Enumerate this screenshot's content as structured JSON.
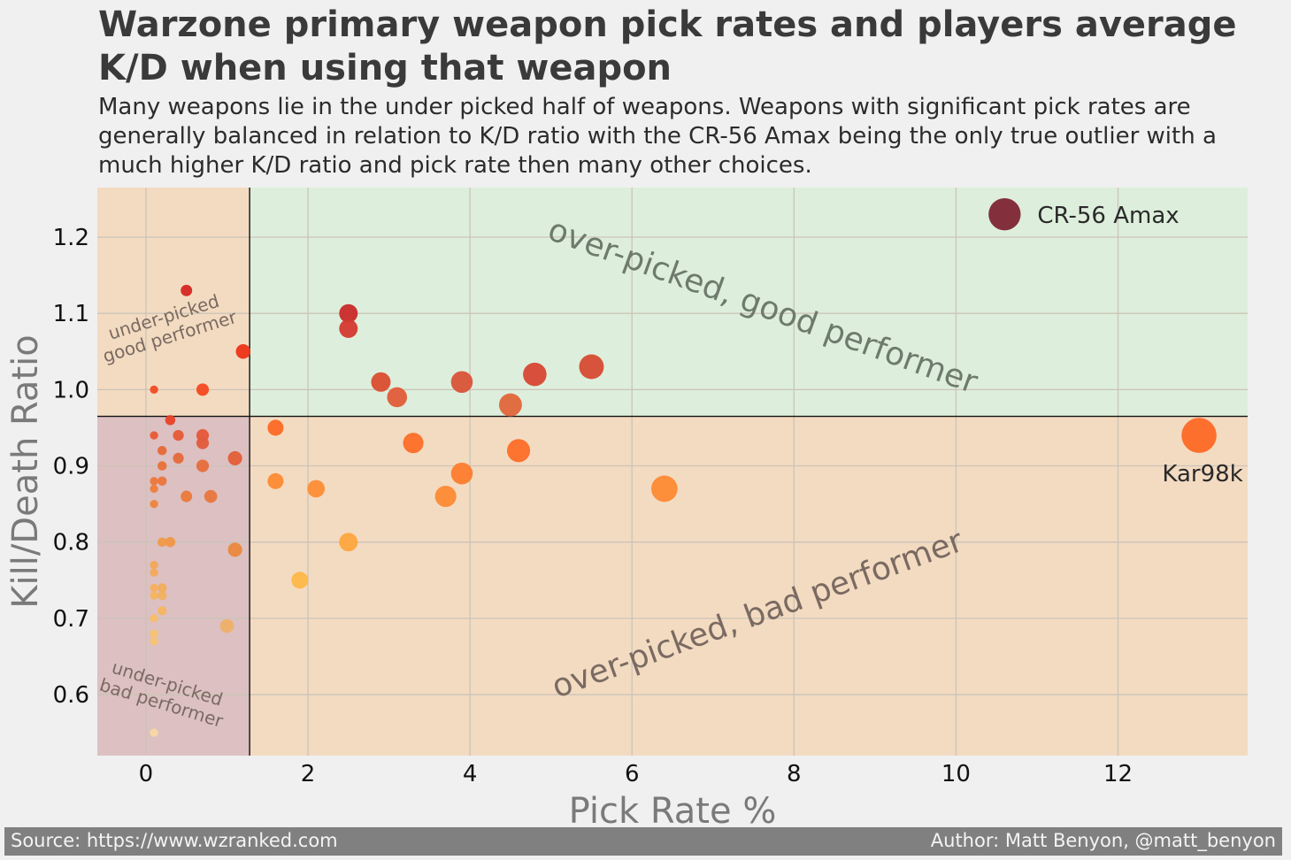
{
  "title": "Warzone primary weapon pick rates and players average K/D when using that weapon",
  "subtitle": "Many weapons lie in the under picked half of weapons. Weapons with significant pick rates are generally balanced in relation to K/D ratio with the CR-56 Amax being the only true outlier with a much higher K/D ratio and pick rate then many other choices.",
  "footer": {
    "source": "Source: https://www.wzranked.com",
    "author": "Author: Matt Benyon, @matt_benyon"
  },
  "chart_data": {
    "type": "scatter",
    "xlabel": "Pick Rate %",
    "ylabel": "Kill/Death Ratio",
    "xlim": [
      -0.6,
      13.6
    ],
    "ylim": [
      0.52,
      1.265
    ],
    "xticks": [
      0,
      2,
      4,
      6,
      8,
      10,
      12
    ],
    "yticks": [
      0.6,
      0.7,
      0.8,
      0.9,
      1.0,
      1.1,
      1.2
    ],
    "grid": true,
    "divider_x": 1.28,
    "divider_y": 0.965,
    "quadrant_labels": {
      "top_left": [
        "under-picked",
        "good performer"
      ],
      "bottom_left": [
        "under-picked",
        "bad performer"
      ],
      "top_right": "over-picked, good performer",
      "bottom_right": "over-picked,  bad performer"
    },
    "quadrant_colors": {
      "top_left": "#f3dbc1",
      "bottom_left": "#dcc0c2",
      "top_right": "#ddefdc",
      "bottom_right": "#f3dbc1"
    },
    "annotations": [
      {
        "text": "CR-56 Amax",
        "x": 10.6,
        "y": 1.23
      },
      {
        "text": "Kar98k",
        "x": 13.0,
        "y": 0.94
      }
    ],
    "points": [
      {
        "x": 10.6,
        "y": 1.23,
        "color": "#7f2835"
      },
      {
        "x": 13.0,
        "y": 0.94,
        "color": "#fd6a26"
      },
      {
        "x": 0.5,
        "y": 1.13,
        "color": "#d42924"
      },
      {
        "x": 1.2,
        "y": 1.05,
        "color": "#ec3518"
      },
      {
        "x": 0.1,
        "y": 1.0,
        "color": "#f04c22"
      },
      {
        "x": 0.7,
        "y": 1.0,
        "color": "#f54a22"
      },
      {
        "x": 2.5,
        "y": 1.1,
        "color": "#c92d2d"
      },
      {
        "x": 2.5,
        "y": 1.08,
        "color": "#d43a32"
      },
      {
        "x": 2.9,
        "y": 1.01,
        "color": "#db4f32"
      },
      {
        "x": 3.1,
        "y": 0.99,
        "color": "#e15d3a"
      },
      {
        "x": 3.9,
        "y": 1.01,
        "color": "#d9553a"
      },
      {
        "x": 4.5,
        "y": 0.98,
        "color": "#e1683c"
      },
      {
        "x": 4.8,
        "y": 1.02,
        "color": "#d74935"
      },
      {
        "x": 5.5,
        "y": 1.03,
        "color": "#d74c34"
      },
      {
        "x": 0.3,
        "y": 0.96,
        "color": "#e8432a"
      },
      {
        "x": 0.1,
        "y": 0.94,
        "color": "#e85a34"
      },
      {
        "x": 0.4,
        "y": 0.94,
        "color": "#e55a38"
      },
      {
        "x": 0.7,
        "y": 0.94,
        "color": "#e5573a"
      },
      {
        "x": 0.7,
        "y": 0.93,
        "color": "#e25c3c"
      },
      {
        "x": 0.2,
        "y": 0.92,
        "color": "#e66a38"
      },
      {
        "x": 0.4,
        "y": 0.91,
        "color": "#e46a3c"
      },
      {
        "x": 1.1,
        "y": 0.91,
        "color": "#e25f38"
      },
      {
        "x": 0.2,
        "y": 0.9,
        "color": "#e8703a"
      },
      {
        "x": 0.7,
        "y": 0.9,
        "color": "#e66d3c"
      },
      {
        "x": 0.1,
        "y": 0.88,
        "color": "#ec783a"
      },
      {
        "x": 0.2,
        "y": 0.88,
        "color": "#ea763c"
      },
      {
        "x": 0.1,
        "y": 0.87,
        "color": "#ee7e3c"
      },
      {
        "x": 0.5,
        "y": 0.86,
        "color": "#ea7a3c"
      },
      {
        "x": 0.8,
        "y": 0.86,
        "color": "#e8783e"
      },
      {
        "x": 0.1,
        "y": 0.85,
        "color": "#ee843e"
      },
      {
        "x": 0.2,
        "y": 0.8,
        "color": "#f09a48"
      },
      {
        "x": 0.3,
        "y": 0.8,
        "color": "#f09648"
      },
      {
        "x": 1.1,
        "y": 0.79,
        "color": "#ea8840"
      },
      {
        "x": 0.1,
        "y": 0.77,
        "color": "#f3a858"
      },
      {
        "x": 0.1,
        "y": 0.76,
        "color": "#f3aa5a"
      },
      {
        "x": 0.1,
        "y": 0.74,
        "color": "#f5b060"
      },
      {
        "x": 0.2,
        "y": 0.74,
        "color": "#f3ae5c"
      },
      {
        "x": 0.1,
        "y": 0.73,
        "color": "#f5b462"
      },
      {
        "x": 0.2,
        "y": 0.73,
        "color": "#f3b060"
      },
      {
        "x": 0.2,
        "y": 0.71,
        "color": "#f5b664"
      },
      {
        "x": 0.1,
        "y": 0.7,
        "color": "#f7bc6a"
      },
      {
        "x": 1.0,
        "y": 0.69,
        "color": "#eeb068"
      },
      {
        "x": 0.1,
        "y": 0.68,
        "color": "#f7c270"
      },
      {
        "x": 0.1,
        "y": 0.67,
        "color": "#f7c472"
      },
      {
        "x": 0.1,
        "y": 0.55,
        "color": "#f8d8a0"
      },
      {
        "x": 1.6,
        "y": 0.95,
        "color": "#fd6a26"
      },
      {
        "x": 3.3,
        "y": 0.93,
        "color": "#fd6e2a"
      },
      {
        "x": 4.6,
        "y": 0.92,
        "color": "#fd6e2a"
      },
      {
        "x": 3.9,
        "y": 0.89,
        "color": "#fd7e30"
      },
      {
        "x": 1.6,
        "y": 0.88,
        "color": "#fd8a34"
      },
      {
        "x": 2.1,
        "y": 0.87,
        "color": "#fd8e36"
      },
      {
        "x": 6.4,
        "y": 0.87,
        "color": "#fd8a34"
      },
      {
        "x": 3.7,
        "y": 0.86,
        "color": "#fd8a34"
      },
      {
        "x": 2.5,
        "y": 0.8,
        "color": "#fda740"
      },
      {
        "x": 1.9,
        "y": 0.75,
        "color": "#fdb84a"
      }
    ]
  }
}
